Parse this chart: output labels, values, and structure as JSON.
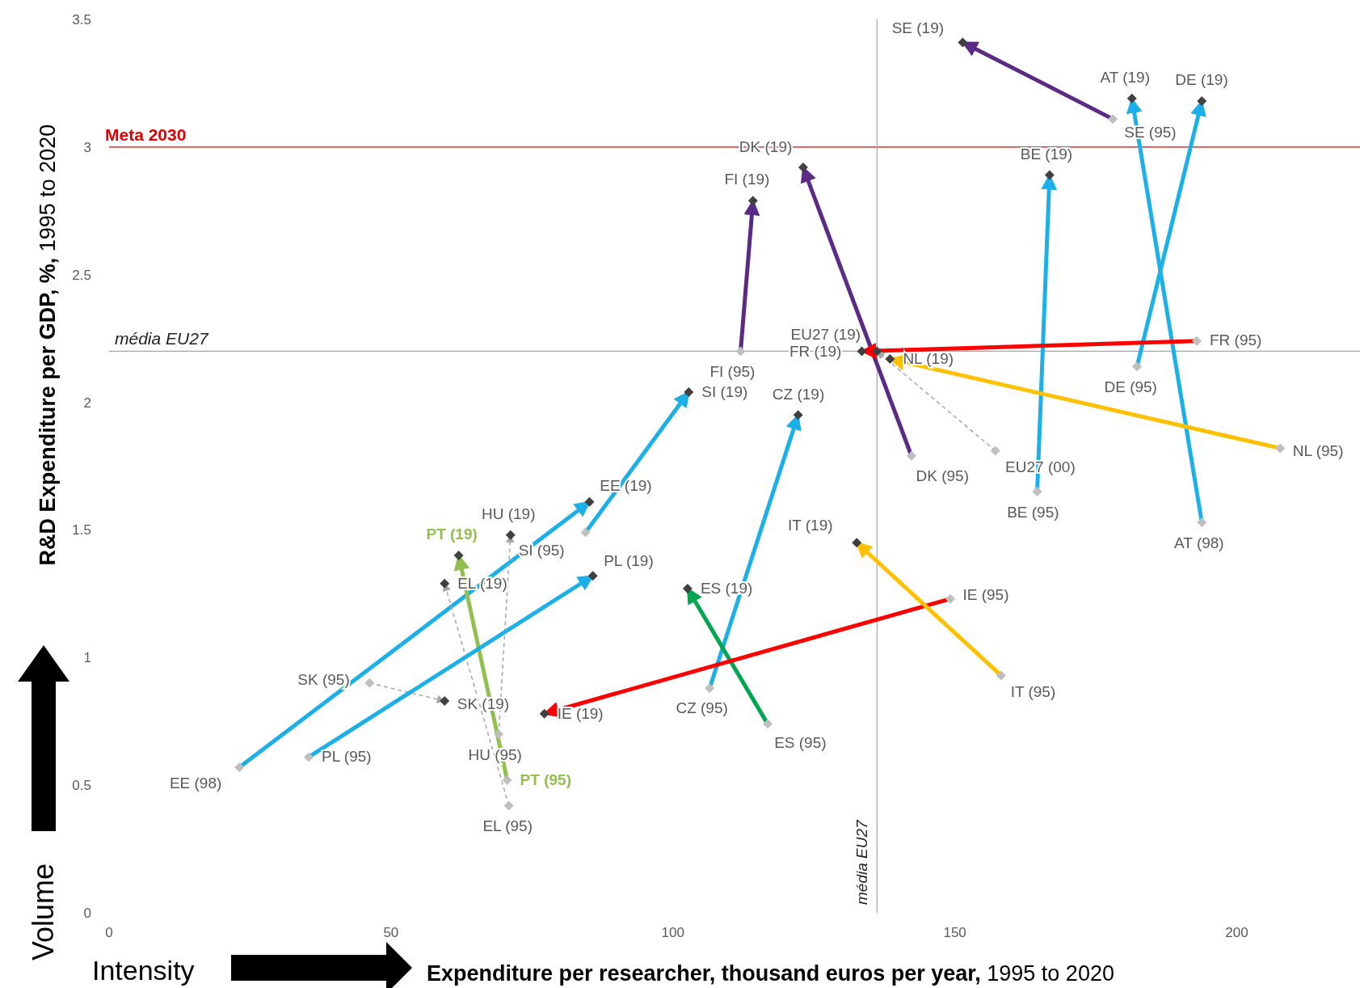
{
  "chart_data": {
    "type": "line",
    "xlabel": "Expenditure per researcher, thousand euros per year, 1995 to 2020",
    "ylabel": "R&D Expenditure per GDP, %, 1995 to 2020",
    "annotations": [
      "Volume",
      "Intensity",
      {
        "text": "SE (95)",
        "x": 178,
        "y": 3.11
      },
      {
        "text": "SE (19)",
        "x": 151.4,
        "y": 3.41
      },
      {
        "text": "AT (98)",
        "x": 193.8,
        "y": 1.53
      },
      {
        "text": "AT (19)",
        "x": 181.4,
        "y": 3.19
      },
      {
        "text": "DE (95)",
        "x": 182.3,
        "y": 2.14
      },
      {
        "text": "DE (19)",
        "x": 193.8,
        "y": 3.18
      },
      {
        "text": "BE (95)",
        "x": 164.6,
        "y": 1.65
      },
      {
        "text": "BE (19)",
        "x": 166.8,
        "y": 2.89
      },
      {
        "text": "FI (95)",
        "x": 112,
        "y": 2.2
      },
      {
        "text": "FI (19)",
        "x": 114.2,
        "y": 2.79
      },
      {
        "text": "DK (95)",
        "x": 142.3,
        "y": 1.79
      },
      {
        "text": "DK (19)",
        "x": 123.1,
        "y": 2.92
      },
      {
        "text": "FR (95)",
        "x": 192.9,
        "y": 2.24
      },
      {
        "text": "FR (19)",
        "x": 133.5,
        "y": 2.2
      },
      {
        "text": "EU27 (00)",
        "x": 157.2,
        "y": 1.81
      },
      {
        "text": "EU27 (19)",
        "x": 136.2,
        "y": 2.2
      },
      {
        "text": "NL (95)",
        "x": 207.7,
        "y": 1.82
      },
      {
        "text": "NL (19)",
        "x": 138.5,
        "y": 2.17
      },
      {
        "text": "SI (95)",
        "x": 84.5,
        "y": 1.49
      },
      {
        "text": "SI (19)",
        "x": 102.8,
        "y": 2.04
      },
      {
        "text": "CZ (95)",
        "x": 106.5,
        "y": 0.88
      },
      {
        "text": "CZ (19)",
        "x": 122.2,
        "y": 1.95
      },
      {
        "text": "EE (98)",
        "x": 23.1,
        "y": 0.57
      },
      {
        "text": "EE (19)",
        "x": 85.2,
        "y": 1.61
      },
      {
        "text": "HU (95)",
        "x": 69.1,
        "y": 0.7
      },
      {
        "text": "HU (19)",
        "x": 71.2,
        "y": 1.48
      },
      {
        "text": "PT (95)",
        "x": 70.6,
        "y": 0.52
      },
      {
        "text": "PT (19)",
        "x": 62,
        "y": 1.4
      },
      {
        "text": "EL (95)",
        "x": 70.9,
        "y": 0.42
      },
      {
        "text": "EL (19)",
        "x": 59.5,
        "y": 1.29
      },
      {
        "text": "SK (95)",
        "x": 46.2,
        "y": 0.9
      },
      {
        "text": "SK (19)",
        "x": 59.5,
        "y": 0.83
      },
      {
        "text": "PL (95)",
        "x": 35.4,
        "y": 0.61
      },
      {
        "text": "PL (19)",
        "x": 85.8,
        "y": 1.32
      },
      {
        "text": "ES (95)",
        "x": 116.8,
        "y": 0.74
      },
      {
        "text": "ES (19)",
        "x": 102.6,
        "y": 1.27
      },
      {
        "text": "IE (95)",
        "x": 149.2,
        "y": 1.23
      },
      {
        "text": "IE (19)",
        "x": 77.2,
        "y": 0.78
      },
      {
        "text": "IT (95)",
        "x": 158.2,
        "y": 0.93
      },
      {
        "text": "IT (19)",
        "x": 132.6,
        "y": 1.45
      }
    ],
    "xlim": [
      0,
      223
    ],
    "ylim": [
      0,
      3.5
    ],
    "xticks": [
      0,
      50,
      100,
      150,
      200
    ],
    "yticks": [
      0,
      0.5,
      1,
      1.5,
      2,
      2.5,
      3,
      3.5
    ],
    "marker": "diamond",
    "ref_lines": [
      {
        "axis": "y",
        "value": 3,
        "label": "Meta 2030",
        "color": "#e00000"
      },
      {
        "axis": "y",
        "value": 2.2,
        "label": "média EU27",
        "color": "#a6a6a6"
      },
      {
        "axis": "x",
        "value": 136.2,
        "label": "média EU27",
        "color": "#a6a6a6"
      }
    ],
    "series": [
      {
        "color": "#5b2a86",
        "x": [
          178,
          151.4
        ],
        "values": [
          3.11,
          3.41
        ]
      },
      {
        "color": "#1cb0e8",
        "x": [
          193.8,
          181.4
        ],
        "values": [
          1.53,
          3.19
        ]
      },
      {
        "color": "#1cb0e8",
        "x": [
          182.3,
          193.8
        ],
        "values": [
          2.14,
          3.18
        ]
      },
      {
        "color": "#1cb0e8",
        "x": [
          164.6,
          166.8
        ],
        "values": [
          1.65,
          2.89
        ]
      },
      {
        "color": "#5b2a86",
        "x": [
          112,
          114.2
        ],
        "values": [
          2.2,
          2.79
        ]
      },
      {
        "color": "#5b2a86",
        "x": [
          142.3,
          123.1
        ],
        "values": [
          1.79,
          2.92
        ]
      },
      {
        "color": "#ff0000",
        "x": [
          192.9,
          133.5
        ],
        "values": [
          2.24,
          2.2
        ]
      },
      {
        "color": "#a6a6a6",
        "line_style": "dashed",
        "x": [
          157.2,
          136.2
        ],
        "values": [
          1.81,
          2.2
        ]
      },
      {
        "color": "#ffc000",
        "x": [
          207.7,
          138.5
        ],
        "values": [
          1.82,
          2.17
        ]
      },
      {
        "color": "#1cb0e8",
        "x": [
          84.5,
          102.8
        ],
        "values": [
          1.49,
          2.04
        ]
      },
      {
        "color": "#1cb0e8",
        "x": [
          106.5,
          122.2
        ],
        "values": [
          0.88,
          1.95
        ]
      },
      {
        "color": "#1cb0e8",
        "x": [
          23.1,
          85.2
        ],
        "values": [
          0.57,
          1.61
        ]
      },
      {
        "color": "#a6a6a6",
        "line_style": "dashed",
        "x": [
          69.1,
          71.2
        ],
        "values": [
          0.7,
          1.48
        ]
      },
      {
        "color": "#92c050",
        "x": [
          70.6,
          62
        ],
        "values": [
          0.52,
          1.4
        ]
      },
      {
        "color": "#a6a6a6",
        "line_style": "dashed",
        "x": [
          70.9,
          59.5
        ],
        "values": [
          0.42,
          1.29
        ]
      },
      {
        "color": "#a6a6a6",
        "line_style": "dashed",
        "x": [
          46.2,
          59.5
        ],
        "values": [
          0.9,
          0.83
        ]
      },
      {
        "color": "#1cb0e8",
        "x": [
          35.4,
          85.8
        ],
        "values": [
          0.61,
          1.32
        ]
      },
      {
        "color": "#00a550",
        "x": [
          116.8,
          102.6
        ],
        "values": [
          0.74,
          1.27
        ]
      },
      {
        "color": "#ff0000",
        "x": [
          149.2,
          77.2
        ],
        "values": [
          1.23,
          0.78
        ]
      },
      {
        "color": "#ffc000",
        "x": [
          158.2,
          132.6
        ],
        "values": [
          0.93,
          1.45
        ]
      }
    ]
  }
}
